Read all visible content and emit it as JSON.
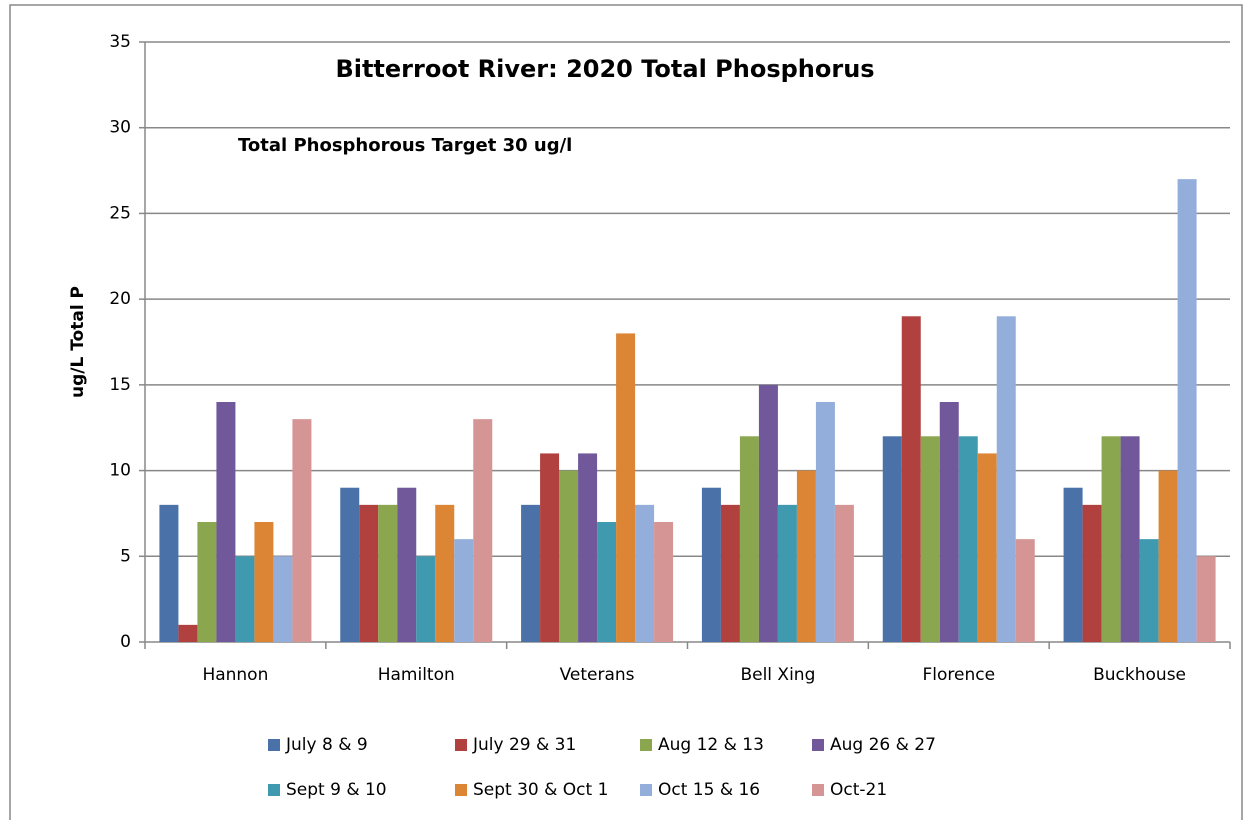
{
  "chart_data": {
    "type": "bar",
    "title": "Bitterroot River: 2020 Total Phosphorus",
    "annotation": "Total Phosphorous Target 30 ug/l",
    "y_label": "ug/L Total P",
    "categories": [
      "Hannon",
      "Hamilton",
      "Veterans",
      "Bell Xing",
      "Florence",
      "Buckhouse"
    ],
    "series": [
      {
        "name": "July 8 & 9",
        "color": "#4a72a8",
        "values": [
          8,
          9,
          8,
          9,
          12,
          9
        ]
      },
      {
        "name": "July 29 & 31",
        "color": "#b0413e",
        "values": [
          1,
          8,
          11,
          8,
          19,
          8
        ]
      },
      {
        "name": "Aug 12 & 13",
        "color": "#8aa64e",
        "values": [
          7,
          8,
          10,
          12,
          12,
          12
        ]
      },
      {
        "name": "Aug 26 & 27",
        "color": "#71589a",
        "values": [
          14,
          9,
          11,
          15,
          14,
          12
        ]
      },
      {
        "name": "Sept 9 & 10",
        "color": "#3f9aaf",
        "values": [
          5,
          5,
          7,
          8,
          12,
          6
        ]
      },
      {
        "name": "Sept 30 & Oct 1",
        "color": "#db8535",
        "values": [
          7,
          8,
          18,
          10,
          11,
          10
        ]
      },
      {
        "name": "Oct 15 & 16",
        "color": "#94aedb",
        "values": [
          5,
          6,
          8,
          14,
          19,
          27
        ]
      },
      {
        "name": "Oct-21",
        "color": "#d69595",
        "values": [
          13,
          13,
          7,
          8,
          6,
          5
        ]
      }
    ],
    "ylim": [
      0,
      35
    ],
    "yticks": [
      0,
      5,
      10,
      15,
      20,
      25,
      30,
      35
    ],
    "grid": true
  }
}
